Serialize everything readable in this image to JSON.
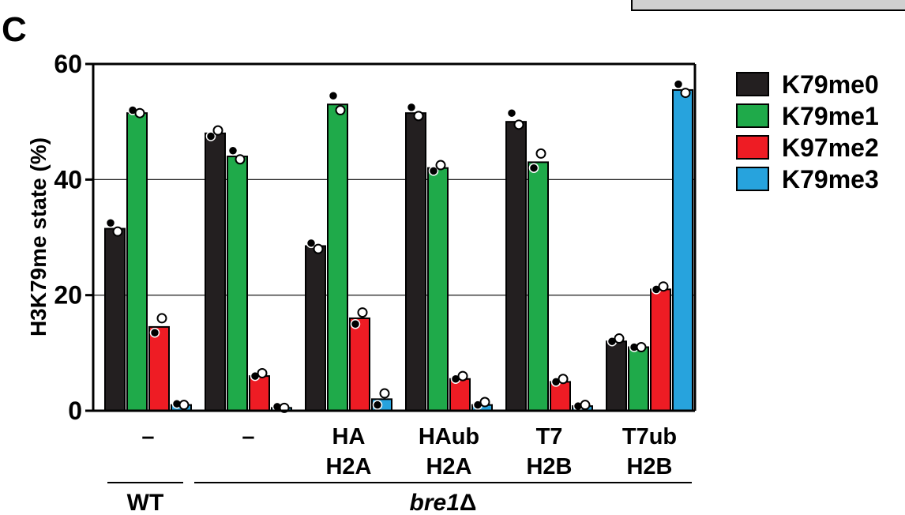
{
  "panel_label": "C",
  "chart_data": {
    "type": "bar",
    "ylabel": "H3K79me state (%)",
    "ylim": [
      0,
      60
    ],
    "yticks": [
      0,
      20,
      40,
      60
    ],
    "grid": true,
    "legend_position": "right",
    "categories": [
      {
        "line1": "–",
        "line2": ""
      },
      {
        "line1": "–",
        "line2": ""
      },
      {
        "line1": "HA",
        "line2": "H2A"
      },
      {
        "line1": "HAub",
        "line2": "H2A"
      },
      {
        "line1": "T7",
        "line2": "H2B"
      },
      {
        "line1": "T7ub",
        "line2": "H2B"
      }
    ],
    "groups": [
      {
        "label": "WT",
        "italic": false,
        "suffix": "",
        "span": [
          0,
          0
        ]
      },
      {
        "label": "bre1",
        "italic": true,
        "suffix": "Δ",
        "span": [
          1,
          5
        ]
      }
    ],
    "series": [
      {
        "name": "K79me0",
        "color": "#231f20",
        "values": [
          31.5,
          48,
          28.5,
          51.5,
          50,
          12
        ],
        "replicates": [
          [
            32.5,
            31
          ],
          [
            47.5,
            48.5
          ],
          [
            29,
            28
          ],
          [
            52.5,
            51
          ],
          [
            51.5,
            49.5
          ],
          [
            12,
            12.5
          ]
        ]
      },
      {
        "name": "K79me1",
        "color": "#1faa4a",
        "values": [
          51.5,
          44,
          53,
          42,
          43,
          11
        ],
        "replicates": [
          [
            52,
            51.5
          ],
          [
            45,
            43.5
          ],
          [
            54.5,
            52
          ],
          [
            41.5,
            42.5
          ],
          [
            42,
            44.5
          ],
          [
            11,
            11
          ]
        ]
      },
      {
        "name": "K97me2",
        "color": "#ee1c24",
        "values": [
          14.5,
          6,
          16,
          5.5,
          5,
          21
        ],
        "replicates": [
          [
            13.5,
            16
          ],
          [
            6,
            6.5
          ],
          [
            15,
            17
          ],
          [
            5.5,
            6
          ],
          [
            5,
            5.5
          ],
          [
            21,
            21.5
          ]
        ]
      },
      {
        "name": "K79me3",
        "color": "#27a3dd",
        "values": [
          1,
          0.5,
          2,
          1,
          0.8,
          55.5
        ],
        "replicates": [
          [
            1.2,
            1
          ],
          [
            0.7,
            0.5
          ],
          [
            1,
            3
          ],
          [
            1,
            1.5
          ],
          [
            0.8,
            1
          ],
          [
            56.5,
            55
          ]
        ]
      }
    ]
  }
}
